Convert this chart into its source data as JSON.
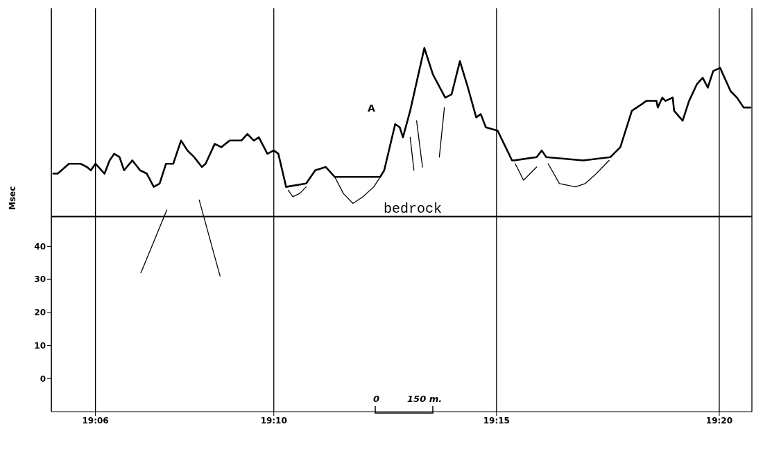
{
  "chart_data": {
    "type": "line",
    "ylabel": "Msec",
    "xlim": [
      19.0835,
      19.3455
    ],
    "ylim": [
      -10,
      112
    ],
    "xticks": [
      {
        "value": 19.1,
        "label": "19:06"
      },
      {
        "value": 19.1667,
        "label": "19:10"
      },
      {
        "value": 19.25,
        "label": "19:15"
      },
      {
        "value": 19.3333,
        "label": "19:20"
      }
    ],
    "yticks": [
      0,
      10,
      20,
      30,
      40
    ],
    "grid": "x",
    "marker": "none",
    "line_style": "solid",
    "ref_lines": [
      {
        "axis": "y",
        "value": 49
      }
    ],
    "annotations": [
      "A",
      "bedrock",
      "0",
      "150 m."
    ],
    "series": [
      {
        "color": "#000000",
        "x": [
          19.0842,
          19.0859,
          19.0901,
          19.0944,
          19.0968,
          19.0983,
          19.1,
          19.1034,
          19.1053,
          19.107,
          19.109,
          19.1107,
          19.1138,
          19.1167,
          19.1192,
          19.1218,
          19.124,
          19.1264,
          19.1291,
          19.132,
          19.1344,
          19.1369,
          19.1398,
          19.1412,
          19.1446,
          19.1471,
          19.1502,
          19.1546,
          19.1568,
          19.1592,
          19.1611,
          19.1643,
          19.1667,
          19.1684,
          19.1713,
          19.1788,
          19.1822,
          19.1861,
          19.1895,
          19.2065,
          19.208,
          19.2121,
          19.2138,
          19.215,
          19.2177,
          19.223,
          19.2262,
          19.2308,
          19.2332,
          19.2363,
          19.2393,
          19.2424,
          19.2441,
          19.246,
          19.2504,
          19.2528,
          19.2558,
          19.2565,
          19.265,
          19.2669,
          19.2686,
          19.2824,
          19.2926,
          19.2963,
          19.3006,
          19.3043,
          19.306,
          19.3098,
          19.3103,
          19.312,
          19.3132,
          19.3159,
          19.3164,
          19.3196,
          19.322,
          19.3249,
          19.3271,
          19.329,
          19.331,
          19.3336,
          19.3375,
          19.3399,
          19.3424,
          19.345
        ],
        "values": [
          62,
          62,
          65,
          65,
          64,
          63,
          65,
          62,
          66,
          68,
          67,
          63,
          66,
          63,
          62,
          58,
          59,
          65,
          65,
          72,
          69,
          67,
          64,
          65,
          71,
          70,
          72,
          72,
          74,
          72,
          73,
          68,
          69,
          68,
          58,
          59,
          63,
          64,
          61,
          61,
          63,
          77,
          76,
          73,
          81,
          100,
          92,
          85,
          86,
          96,
          88,
          79,
          80,
          76,
          75,
          71,
          66,
          66,
          67,
          69,
          67,
          66,
          67,
          70,
          81,
          83,
          84,
          84,
          82,
          85,
          84,
          85,
          81,
          78,
          84,
          89,
          91,
          88,
          93,
          94,
          87,
          85,
          82,
          82
        ]
      },
      {
        "color": "#000000",
        "x": [
          19.1721,
          19.1738,
          19.1764,
          19.1788
        ],
        "values": [
          57,
          55,
          56,
          58
        ]
      },
      {
        "color": "#000000",
        "x": [
          19.1895,
          19.1927,
          19.1963,
          19.2,
          19.2041,
          19.2065
        ],
        "values": [
          61,
          56,
          53,
          55,
          58,
          61
        ]
      },
      {
        "color": "#000000",
        "x": [
          19.257,
          19.2601,
          19.265
        ],
        "values": [
          65,
          60,
          64
        ]
      },
      {
        "color": "#000000",
        "x": [
          19.2693,
          19.2735,
          19.2795,
          19.2832,
          19.2873,
          19.2921
        ],
        "values": [
          65,
          59,
          58,
          59,
          62,
          66
        ]
      },
      {
        "color": "#000000",
        "x": [
          19.2177,
          19.2191
        ],
        "values": [
          73,
          63
        ]
      },
      {
        "color": "#000000",
        "x": [
          19.2201,
          19.2223
        ],
        "values": [
          78,
          64
        ]
      },
      {
        "color": "#000000",
        "x": [
          19.2305,
          19.2286
        ],
        "values": [
          82,
          67
        ]
      },
      {
        "color": "#000000",
        "x": [
          19.1267,
          19.117
        ],
        "values": [
          51,
          32
        ]
      },
      {
        "color": "#000000",
        "x": [
          19.1388,
          19.1466
        ],
        "values": [
          54,
          31
        ]
      }
    ]
  }
}
